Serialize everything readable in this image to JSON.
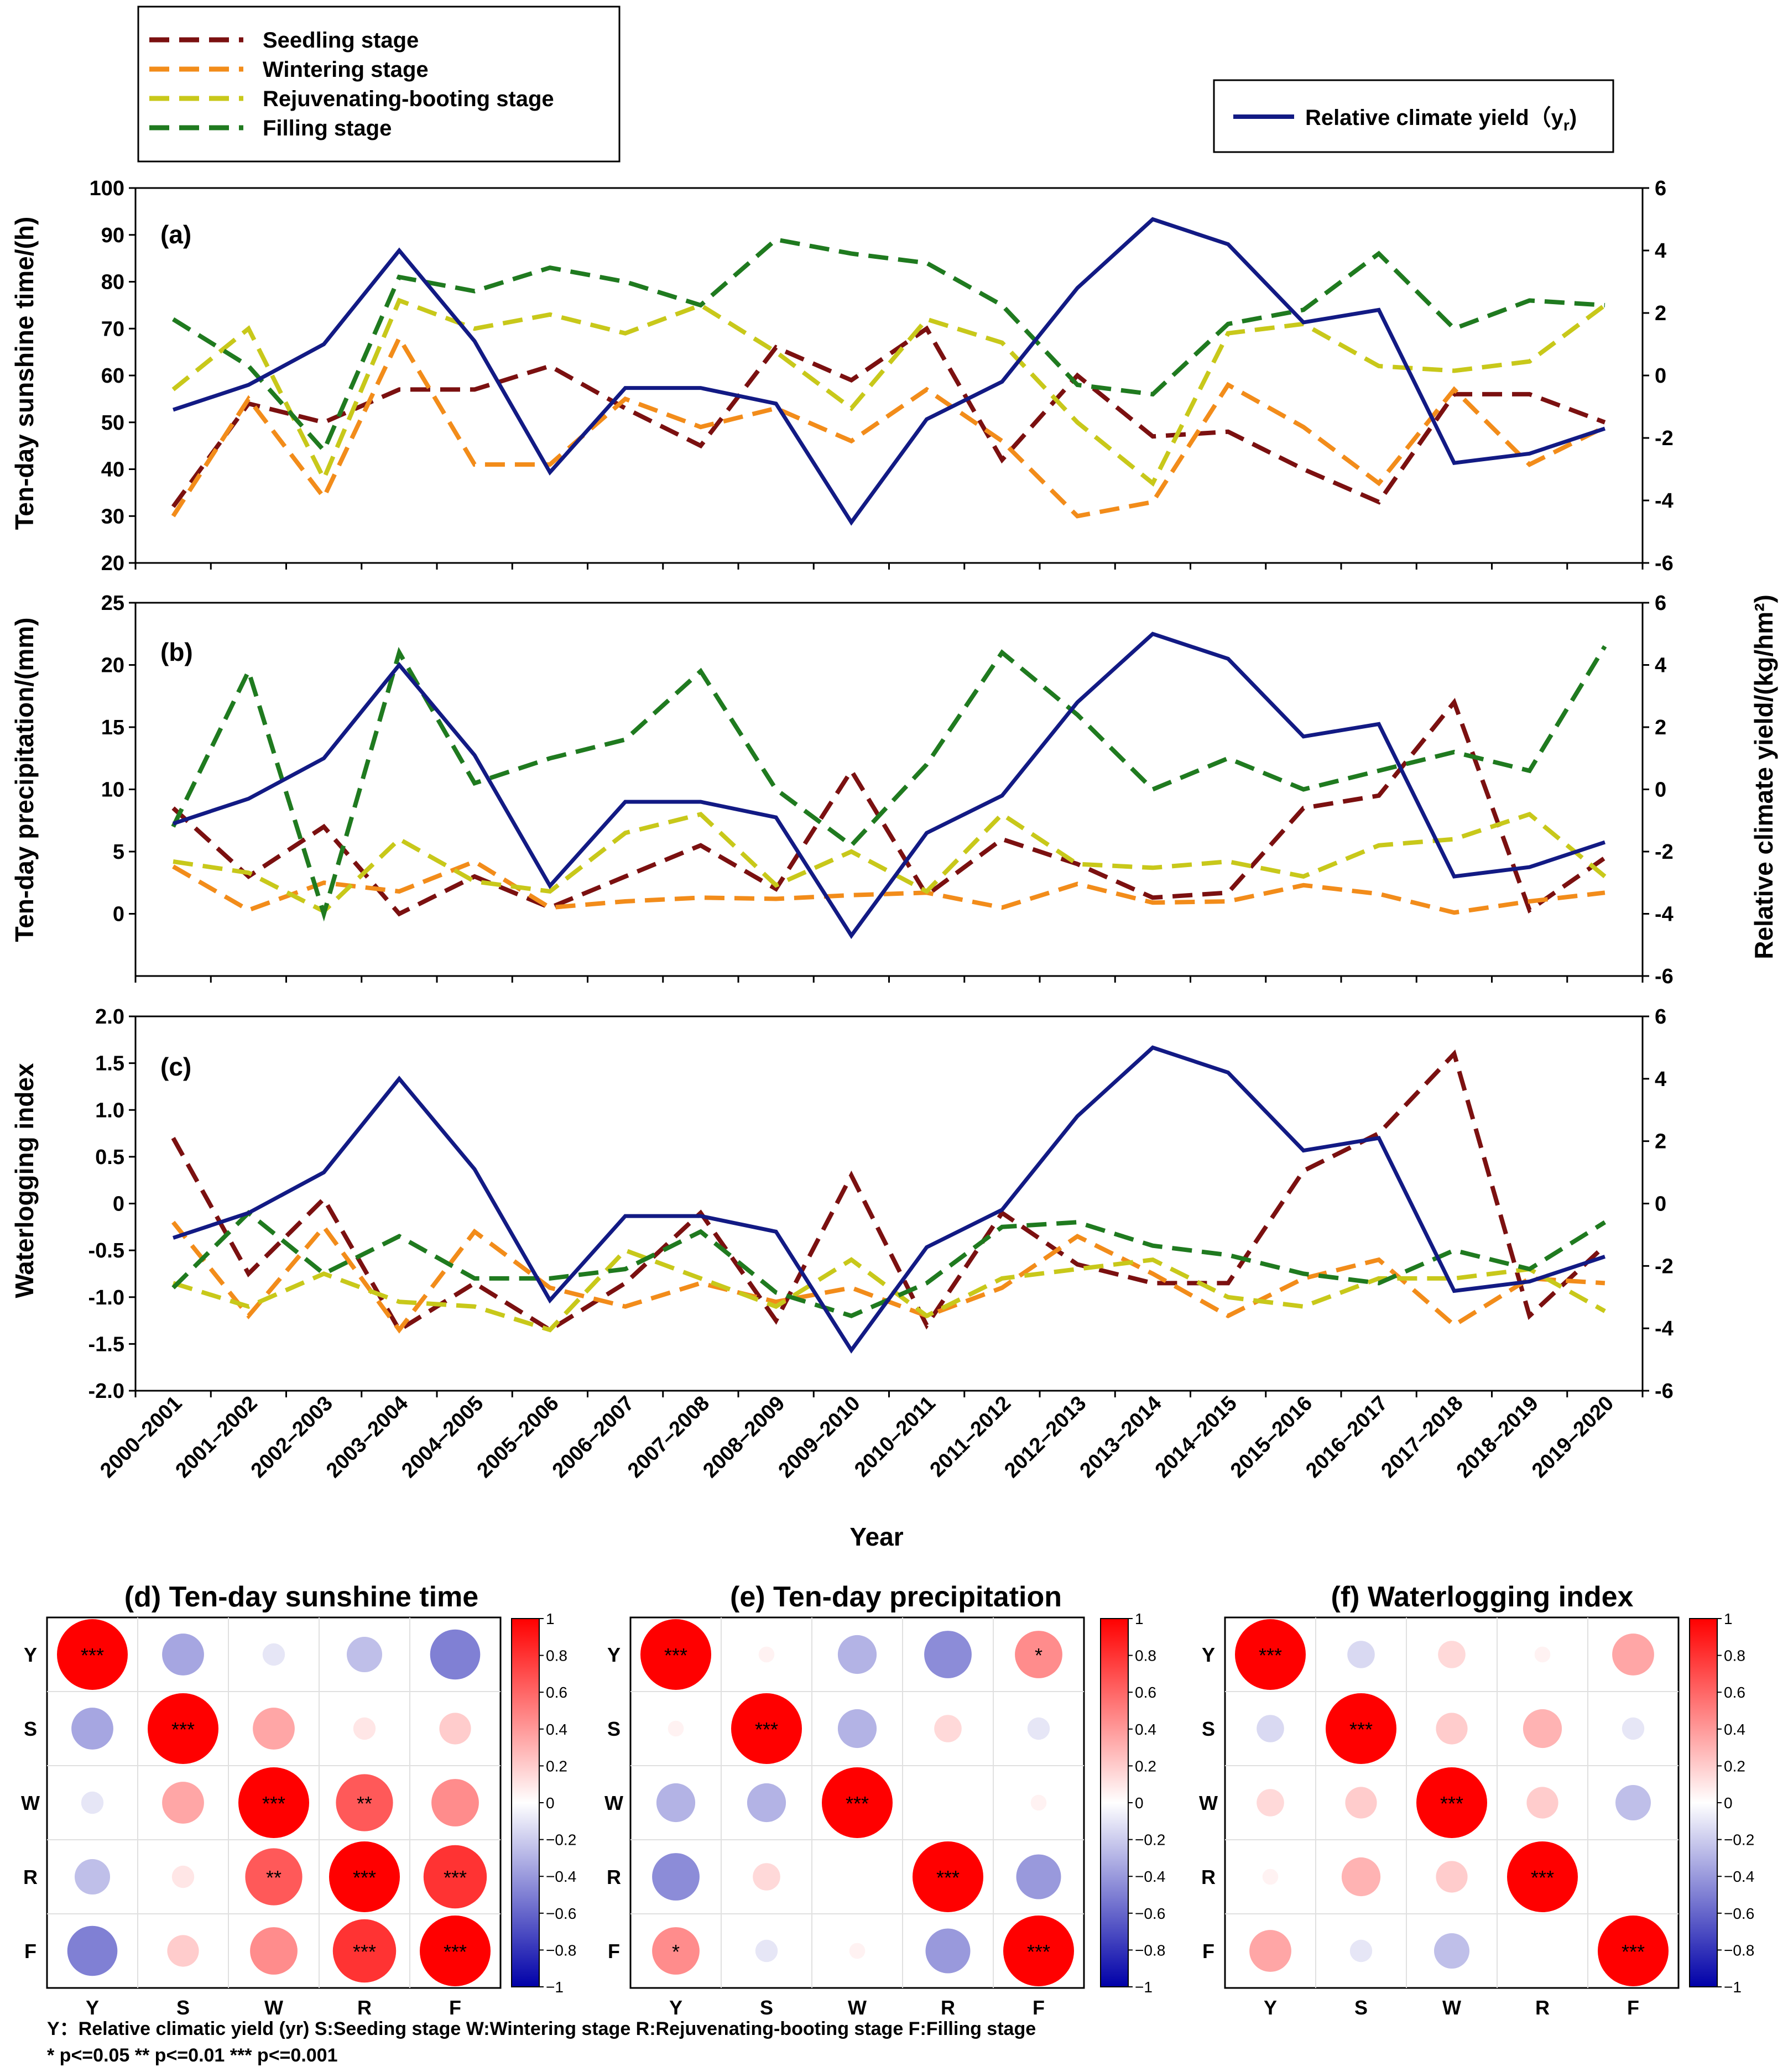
{
  "colors": {
    "yield": "#121a84",
    "seedling": "#7b1010",
    "wintering": "#f28c1a",
    "rejuvenating": "#c8c81a",
    "filling": "#1f7a1f"
  },
  "legend": {
    "seedling": "Seedling stage",
    "wintering": "Wintering stage",
    "rejuvenating": "Rejuvenating-booting stage",
    "filling": "Filling stage",
    "yield_main": "Relative climate yield（y",
    "yield_sub": "r",
    "yield_end": ")"
  },
  "xaxis": {
    "label": "Year"
  },
  "right_axis_label": "Relative climate yield/(kg/hm²)",
  "chart_data": [
    {
      "id": "a",
      "type": "line",
      "panel_label": "(a)",
      "ylabel": "Ten-day sunshine time/(h)",
      "ylim": [
        20,
        100
      ],
      "yticks": [
        "20",
        "30",
        "40",
        "50",
        "60",
        "70",
        "80",
        "90",
        "100"
      ],
      "y2lim": [
        -6,
        6
      ],
      "y2ticks": [
        "-6",
        "-4",
        "-2",
        "0",
        "2",
        "4",
        "6"
      ],
      "categories": [
        "2000–2001",
        "2001–2002",
        "2002–2003",
        "2003–2004",
        "2004–2005",
        "2005–2006",
        "2006–2007",
        "2007–2008",
        "2008–2009",
        "2009–2010",
        "2010–2011",
        "2011–2012",
        "2012–2013",
        "2013–2014",
        "2014–2015",
        "2015–2016",
        "2016–2017",
        "2017–2018",
        "2018–2019",
        "2019–2020"
      ],
      "series": [
        {
          "name": "Seedling stage",
          "key": "seedling",
          "values": [
            32,
            54,
            50,
            57,
            57,
            62,
            53,
            45,
            66,
            59,
            70,
            42,
            60,
            47,
            48,
            40,
            33,
            56,
            56,
            50
          ]
        },
        {
          "name": "Wintering stage",
          "key": "wintering",
          "values": [
            30,
            55,
            34,
            68,
            41,
            41,
            55,
            49,
            53,
            46,
            57,
            46,
            30,
            33,
            58,
            49,
            37,
            57,
            41,
            49
          ]
        },
        {
          "name": "Rejuvenating-booting stage",
          "key": "rejuvenating",
          "values": [
            57,
            70,
            38,
            76,
            70,
            73,
            69,
            75,
            65,
            53,
            72,
            67,
            50,
            37,
            69,
            71,
            62,
            61,
            63,
            75
          ]
        },
        {
          "name": "Filling stage",
          "key": "filling",
          "values": [
            72,
            62,
            44,
            81,
            78,
            83,
            80,
            75,
            89,
            86,
            84,
            75,
            58,
            56,
            71,
            74,
            86,
            70,
            76,
            75
          ]
        },
        {
          "name": "Relative climate yield",
          "key": "yield",
          "axis": "right",
          "values": [
            -1.1,
            -0.3,
            1.0,
            4.0,
            1.1,
            -3.1,
            -0.4,
            -0.4,
            -0.9,
            -4.7,
            -1.4,
            -0.2,
            2.8,
            5.0,
            4.2,
            1.7,
            2.1,
            -2.8,
            -2.5,
            -1.7
          ]
        }
      ]
    },
    {
      "id": "b",
      "type": "line",
      "panel_label": "(b)",
      "ylabel": "Ten-day precipitation/(mm)",
      "ylim": [
        -5,
        25
      ],
      "yticks": [
        "0",
        "5",
        "10",
        "15",
        "20",
        "25"
      ],
      "y2lim": [
        -6,
        6
      ],
      "y2ticks": [
        "-6",
        "-4",
        "-2",
        "0",
        "2",
        "4",
        "6"
      ],
      "categories": [
        "2000–2001",
        "2001–2002",
        "2002–2003",
        "2003–2004",
        "2004–2005",
        "2005–2006",
        "2006–2007",
        "2007–2008",
        "2008–2009",
        "2009–2010",
        "2010–2011",
        "2011–2012",
        "2012–2013",
        "2013–2014",
        "2014–2015",
        "2015–2016",
        "2016–2017",
        "2017–2018",
        "2018–2019",
        "2019–2020"
      ],
      "series": [
        {
          "name": "Seedling stage",
          "key": "seedling",
          "values": [
            8.5,
            3,
            7,
            0,
            3,
            0.5,
            3,
            5.5,
            2,
            11.5,
            1.5,
            6,
            4,
            1.3,
            1.7,
            8.5,
            9.5,
            17,
            0.3,
            4.5
          ]
        },
        {
          "name": "Wintering stage",
          "key": "wintering",
          "values": [
            3.8,
            0.3,
            2.5,
            1.8,
            4.2,
            0.5,
            1,
            1.3,
            1.2,
            1.5,
            1.7,
            0.5,
            2.4,
            0.9,
            1,
            2.3,
            1.6,
            0.1,
            1,
            1.7
          ]
        },
        {
          "name": "Rejuvenating-booting stage",
          "key": "rejuvenating",
          "values": [
            4.2,
            3.3,
            0.2,
            6,
            2.6,
            1.8,
            6.5,
            8,
            2.3,
            5,
            1.8,
            8,
            4,
            3.7,
            4.2,
            3,
            5.5,
            6,
            8,
            3
          ]
        },
        {
          "name": "Filling stage",
          "key": "filling",
          "values": [
            7,
            19.5,
            0,
            21,
            10.5,
            12.5,
            14,
            19.5,
            10,
            5.5,
            12,
            21,
            16,
            10,
            12.5,
            10,
            11.5,
            13,
            11.5,
            21.5
          ]
        },
        {
          "name": "Relative climate yield",
          "key": "yield",
          "axis": "right",
          "values": [
            -1.1,
            -0.3,
            1.0,
            4.0,
            1.1,
            -3.1,
            -0.4,
            -0.4,
            -0.9,
            -4.7,
            -1.4,
            -0.2,
            2.8,
            5.0,
            4.2,
            1.7,
            2.1,
            -2.8,
            -2.5,
            -1.7
          ]
        }
      ]
    },
    {
      "id": "c",
      "type": "line",
      "panel_label": "(c)",
      "ylabel": "Waterlogging index",
      "ylim": [
        -2,
        2
      ],
      "yticks": [
        "-2.0",
        "-1.5",
        "-1.0",
        "-0.5",
        "0",
        "0.5",
        "1.0",
        "1.5",
        "2.0"
      ],
      "y2lim": [
        -6,
        6
      ],
      "y2ticks": [
        "-6",
        "-4",
        "-2",
        "0",
        "2",
        "4",
        "6"
      ],
      "categories": [
        "2000–2001",
        "2001–2002",
        "2002–2003",
        "2003–2004",
        "2004–2005",
        "2005–2006",
        "2006–2007",
        "2007–2008",
        "2008–2009",
        "2009–2010",
        "2010–2011",
        "2011–2012",
        "2012–2013",
        "2013–2014",
        "2014–2015",
        "2015–2016",
        "2016–2017",
        "2017–2018",
        "2018–2019",
        "2019–2020"
      ],
      "series": [
        {
          "name": "Seedling stage",
          "key": "seedling",
          "values": [
            0.7,
            -0.75,
            0.05,
            -1.35,
            -0.85,
            -1.35,
            -0.85,
            -0.1,
            -1.25,
            0.3,
            -1.3,
            -0.1,
            -0.65,
            -0.85,
            -0.85,
            0.35,
            0.75,
            1.6,
            -1.2,
            -0.45
          ]
        },
        {
          "name": "Wintering stage",
          "key": "wintering",
          "values": [
            -0.2,
            -1.2,
            -0.25,
            -1.35,
            -0.3,
            -0.9,
            -1.1,
            -0.85,
            -1.05,
            -0.9,
            -1.2,
            -0.9,
            -0.35,
            -0.75,
            -1.2,
            -0.8,
            -0.6,
            -1.3,
            -0.8,
            -0.85
          ]
        },
        {
          "name": "Rejuvenating-booting stage",
          "key": "rejuvenating",
          "values": [
            -0.85,
            -1.1,
            -0.75,
            -1.05,
            -1.1,
            -1.35,
            -0.5,
            -0.8,
            -1.1,
            -0.6,
            -1.2,
            -0.8,
            -0.7,
            -0.6,
            -1.0,
            -1.1,
            -0.8,
            -0.8,
            -0.7,
            -1.15
          ]
        },
        {
          "name": "Filling stage",
          "key": "filling",
          "values": [
            -0.9,
            -0.1,
            -0.75,
            -0.35,
            -0.8,
            -0.8,
            -0.7,
            -0.3,
            -0.95,
            -1.2,
            -0.85,
            -0.25,
            -0.2,
            -0.45,
            -0.55,
            -0.75,
            -0.85,
            -0.5,
            -0.7,
            -0.2
          ]
        },
        {
          "name": "Relative climate yield",
          "key": "yield",
          "axis": "right",
          "values": [
            -1.1,
            -0.3,
            1.0,
            4.0,
            1.1,
            -3.1,
            -0.4,
            -0.4,
            -0.9,
            -4.7,
            -1.4,
            -0.2,
            2.8,
            5.0,
            4.2,
            1.7,
            2.1,
            -2.8,
            -2.5,
            -1.7
          ]
        }
      ]
    },
    {
      "id": "d",
      "type": "heatmap",
      "title": "(d) Ten-day sunshine time",
      "labels": [
        "Y",
        "S",
        "W",
        "R",
        "F"
      ],
      "values": [
        [
          1,
          -0.35,
          -0.1,
          -0.25,
          -0.5
        ],
        [
          -0.35,
          1,
          0.35,
          0.1,
          0.2
        ],
        [
          -0.1,
          0.35,
          1,
          0.65,
          0.45
        ],
        [
          -0.25,
          0.1,
          0.65,
          1,
          0.8
        ],
        [
          -0.5,
          0.2,
          0.45,
          0.8,
          1
        ]
      ],
      "stars": [
        [
          "***",
          "",
          "",
          "",
          ""
        ],
        [
          "",
          "***",
          "",
          "",
          ""
        ],
        [
          "",
          "",
          "***",
          "**",
          ""
        ],
        [
          "",
          "",
          "**",
          "***",
          "***"
        ],
        [
          "",
          "",
          "",
          "***",
          "***"
        ]
      ],
      "colorbar_ticks": [
        "1",
        "0.8",
        "0.6",
        "0.4",
        "0.2",
        "0",
        "−0.2",
        "−0.4",
        "−0.6",
        "−0.8",
        "−1"
      ]
    },
    {
      "id": "e",
      "type": "heatmap",
      "title": "(e) Ten-day precipitation",
      "labels": [
        "Y",
        "S",
        "W",
        "R",
        "F"
      ],
      "values": [
        [
          1,
          0.05,
          -0.3,
          -0.45,
          0.45
        ],
        [
          0.05,
          1,
          -0.3,
          0.15,
          -0.1
        ],
        [
          -0.3,
          -0.3,
          1,
          0,
          0.05
        ],
        [
          -0.45,
          0.15,
          0,
          1,
          -0.4
        ],
        [
          0.45,
          -0.1,
          0.05,
          -0.4,
          1
        ]
      ],
      "stars": [
        [
          "***",
          "",
          "",
          "",
          "*"
        ],
        [
          "",
          "***",
          "",
          "",
          ""
        ],
        [
          "",
          "",
          "***",
          "",
          ""
        ],
        [
          "",
          "",
          "",
          "***",
          ""
        ],
        [
          "*",
          "",
          "",
          "",
          "***"
        ]
      ],
      "colorbar_ticks": [
        "1",
        "0.8",
        "0.6",
        "0.4",
        "0.2",
        "0",
        "−0.2",
        "−0.4",
        "−0.6",
        "−0.8",
        "−1"
      ]
    },
    {
      "id": "f",
      "type": "heatmap",
      "title": "(f) Waterlogging index",
      "labels": [
        "Y",
        "S",
        "W",
        "R",
        "F"
      ],
      "values": [
        [
          1,
          -0.15,
          0.15,
          0.05,
          0.35
        ],
        [
          -0.15,
          1,
          0.2,
          0.3,
          -0.1
        ],
        [
          0.15,
          0.2,
          1,
          0.2,
          -0.25
        ],
        [
          0.05,
          0.3,
          0.2,
          1,
          0
        ],
        [
          0.35,
          -0.1,
          -0.25,
          0,
          1
        ]
      ],
      "stars": [
        [
          "***",
          "",
          "",
          "",
          ""
        ],
        [
          "",
          "***",
          "",
          "",
          ""
        ],
        [
          "",
          "",
          "***",
          "",
          ""
        ],
        [
          "",
          "",
          "",
          "***",
          ""
        ],
        [
          "",
          "",
          "",
          "",
          "***"
        ]
      ],
      "colorbar_ticks": [
        "1",
        "0.8",
        "0.6",
        "0.4",
        "0.2",
        "0",
        "−0.2",
        "−0.4",
        "−0.6",
        "−0.8",
        "−1"
      ]
    }
  ],
  "footer": {
    "line1": "Y：Relative climatic yield (yr)     S:Seeding stage     W:Wintering stage     R:Rejuvenating-booting stage     F:Filling stage",
    "line2": "* p<=0.05  ** p<=0.01  *** p<=0.001"
  }
}
